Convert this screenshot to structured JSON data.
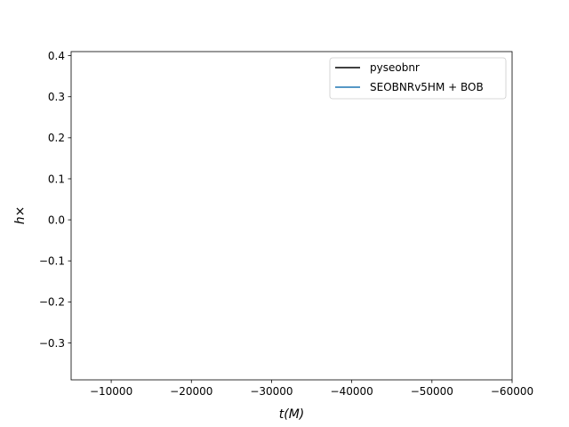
{
  "chart_data": {
    "type": "line",
    "title": "",
    "xlabel": "t(M)",
    "ylabel": "h×",
    "xlim": [
      -5000,
      -60000
    ],
    "ylim": [
      -0.39,
      0.41
    ],
    "x_axis_inverted": true,
    "x_ticks": [
      -10000,
      -20000,
      -30000,
      -40000,
      -50000,
      -60000
    ],
    "x_tick_labels": [
      "−10000",
      "−20000",
      "−30000",
      "−40000",
      "−50000",
      "−60000"
    ],
    "y_ticks": [
      -0.3,
      -0.2,
      -0.1,
      0.0,
      0.1,
      0.2,
      0.3,
      0.4
    ],
    "y_tick_labels": [
      "−0.3",
      "−0.2",
      "−0.1",
      "0.0",
      "0.1",
      "0.2",
      "0.3",
      "0.4"
    ],
    "grid": false,
    "legend_position": "top-right",
    "series": [
      {
        "name": "pyseobnr",
        "color": "#000000",
        "x": [],
        "y": []
      },
      {
        "name": "SEOBNRv5HM + BOB",
        "color": "#1f77b4",
        "x": [],
        "y": []
      }
    ]
  }
}
